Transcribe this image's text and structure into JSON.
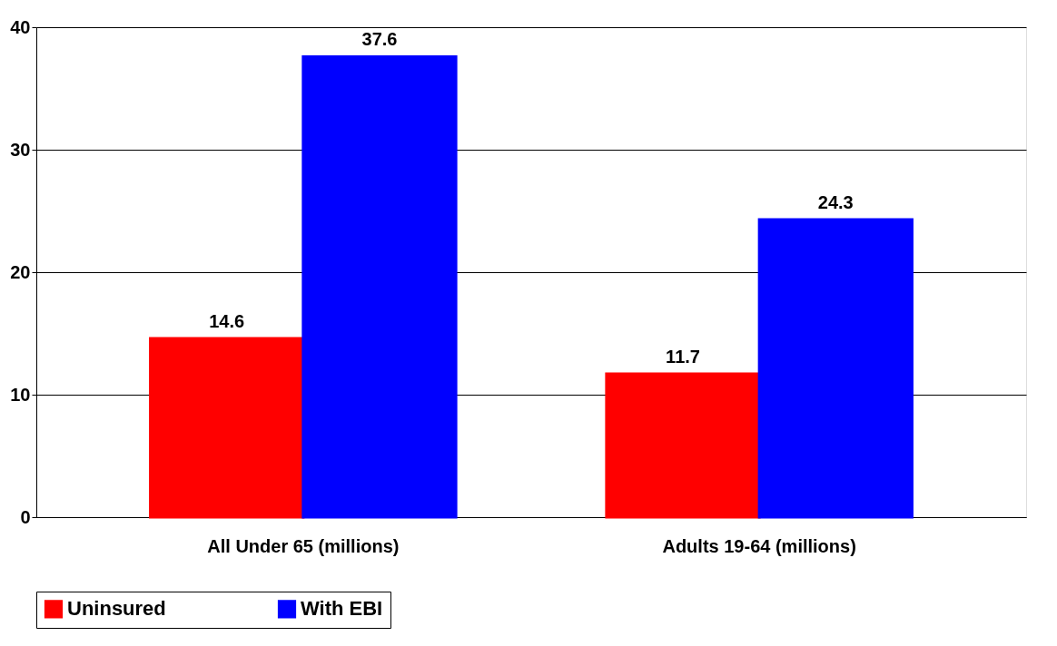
{
  "chart_data": {
    "type": "bar",
    "categories": [
      "All Under 65 (millions)",
      "Adults 19-64 (millions)"
    ],
    "series": [
      {
        "name": "Uninsured",
        "color": "#ff0000",
        "values": [
          14.6,
          11.7
        ]
      },
      {
        "name": "With EBI",
        "color": "#0000ff",
        "values": [
          37.6,
          24.3
        ]
      }
    ],
    "ylim": [
      0,
      40
    ],
    "yticks": [
      0,
      10,
      20,
      30,
      40
    ],
    "grid": "y",
    "legend": "bottom",
    "data_labels": true
  }
}
